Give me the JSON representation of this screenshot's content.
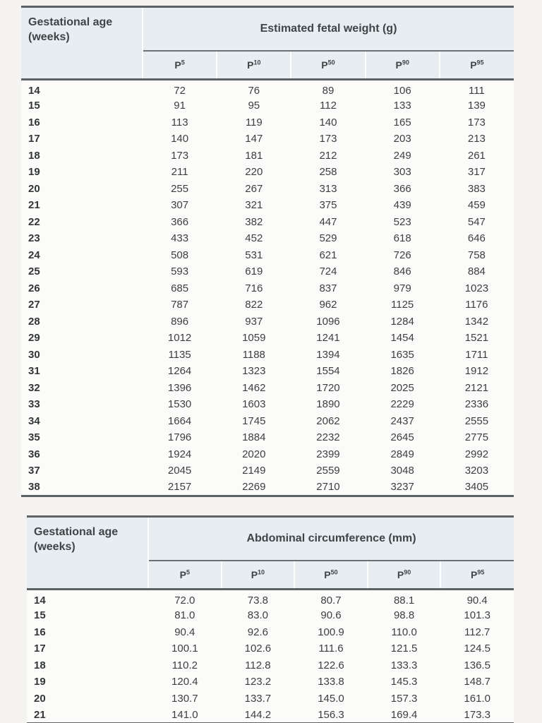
{
  "colors": {
    "header_background": "#e8edf1",
    "rule": "#5d6265",
    "text": "#3a3a3a",
    "page_background": "#f5f4f2"
  },
  "tables": [
    {
      "name": "estimated-fetal-weight",
      "row_header": {
        "line1": "Gestational age",
        "line2": "(weeks)"
      },
      "group_header": "Estimated fetal weight (g)",
      "columns": [
        {
          "base": "P",
          "sup": "5"
        },
        {
          "base": "P",
          "sup": "10"
        },
        {
          "base": "P",
          "sup": "50"
        },
        {
          "base": "P",
          "sup": "90"
        },
        {
          "base": "P",
          "sup": "95"
        }
      ],
      "rows": [
        [
          "14",
          "72",
          "76",
          "89",
          "106",
          "111"
        ],
        [
          "15",
          "91",
          "95",
          "112",
          "133",
          "139"
        ],
        [
          "16",
          "113",
          "119",
          "140",
          "165",
          "173"
        ],
        [
          "17",
          "140",
          "147",
          "173",
          "203",
          "213"
        ],
        [
          "18",
          "173",
          "181",
          "212",
          "249",
          "261"
        ],
        [
          "19",
          "211",
          "220",
          "258",
          "303",
          "317"
        ],
        [
          "20",
          "255",
          "267",
          "313",
          "366",
          "383"
        ],
        [
          "21",
          "307",
          "321",
          "375",
          "439",
          "459"
        ],
        [
          "22",
          "366",
          "382",
          "447",
          "523",
          "547"
        ],
        [
          "23",
          "433",
          "452",
          "529",
          "618",
          "646"
        ],
        [
          "24",
          "508",
          "531",
          "621",
          "726",
          "758"
        ],
        [
          "25",
          "593",
          "619",
          "724",
          "846",
          "884"
        ],
        [
          "26",
          "685",
          "716",
          "837",
          "979",
          "1023"
        ],
        [
          "27",
          "787",
          "822",
          "962",
          "1125",
          "1176"
        ],
        [
          "28",
          "896",
          "937",
          "1096",
          "1284",
          "1342"
        ],
        [
          "29",
          "1012",
          "1059",
          "1241",
          "1454",
          "1521"
        ],
        [
          "30",
          "1135",
          "1188",
          "1394",
          "1635",
          "1711"
        ],
        [
          "31",
          "1264",
          "1323",
          "1554",
          "1826",
          "1912"
        ],
        [
          "32",
          "1396",
          "1462",
          "1720",
          "2025",
          "2121"
        ],
        [
          "33",
          "1530",
          "1603",
          "1890",
          "2229",
          "2336"
        ],
        [
          "34",
          "1664",
          "1745",
          "2062",
          "2437",
          "2555"
        ],
        [
          "35",
          "1796",
          "1884",
          "2232",
          "2645",
          "2775"
        ],
        [
          "36",
          "1924",
          "2020",
          "2399",
          "2849",
          "2992"
        ],
        [
          "37",
          "2045",
          "2149",
          "2559",
          "3048",
          "3203"
        ],
        [
          "38",
          "2157",
          "2269",
          "2710",
          "3237",
          "3405"
        ]
      ]
    },
    {
      "name": "abdominal-circumference",
      "row_header": {
        "line1": "Gestational age",
        "line2": "(weeks)"
      },
      "group_header": "Abdominal circumference (mm)",
      "columns": [
        {
          "base": "P",
          "sup": "5"
        },
        {
          "base": "P",
          "sup": "10"
        },
        {
          "base": "P",
          "sup": "50"
        },
        {
          "base": "P",
          "sup": "90"
        },
        {
          "base": "P",
          "sup": "95"
        }
      ],
      "rows": [
        [
          "14",
          "72.0",
          "73.8",
          "80.7",
          "88.1",
          "90.4"
        ],
        [
          "15",
          "81.0",
          "83.0",
          "90.6",
          "98.8",
          "101.3"
        ],
        [
          "16",
          "90.4",
          "92.6",
          "100.9",
          "110.0",
          "112.7"
        ],
        [
          "17",
          "100.1",
          "102.6",
          "111.6",
          "121.5",
          "124.5"
        ],
        [
          "18",
          "110.2",
          "112.8",
          "122.6",
          "133.3",
          "136.5"
        ],
        [
          "19",
          "120.4",
          "123.2",
          "133.8",
          "145.3",
          "148.7"
        ],
        [
          "20",
          "130.7",
          "133.7",
          "145.0",
          "157.3",
          "161.0"
        ],
        [
          "21",
          "141.0",
          "144.2",
          "156.3",
          "169.4",
          "173.3"
        ]
      ]
    }
  ]
}
